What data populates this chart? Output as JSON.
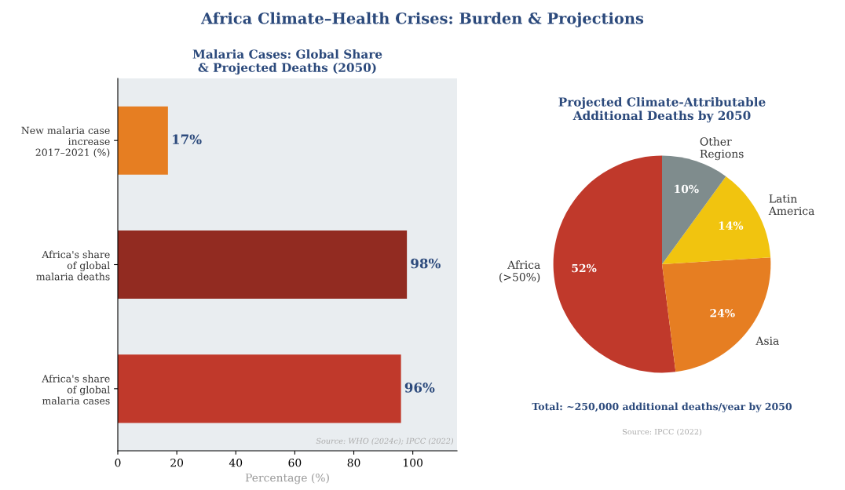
{
  "chart_data": [
    {
      "type": "bar",
      "orientation": "horizontal",
      "title": "Malaria Cases: Global Share\n& Projected Deaths (2050)",
      "xlabel": "Percentage (%)",
      "categories": [
        "New malaria case\nincrease\n2017–2021 (%)",
        "Africa's share\nof global\nmalaria deaths",
        "Africa's share\nof global\nmalaria cases"
      ],
      "values": [
        17,
        98,
        96
      ],
      "colors": [
        "#e67e22",
        "#922b21",
        "#c0392b"
      ],
      "value_labels": [
        "17%",
        "98%",
        "96%"
      ],
      "xlim": [
        0,
        115
      ],
      "xticks": [
        0,
        20,
        40,
        60,
        80,
        100
      ],
      "grid": false,
      "annotations": [
        "Africa Climate–Health Crises: Burden & Projections",
        "Source: WHO (2024c); IPCC (2022)"
      ]
    },
    {
      "type": "pie",
      "title": "Projected Climate-Attributable\nAdditional Deaths by 2050",
      "categories": [
        "Africa\n(>50%)",
        "Asia",
        "Latin\nAmerica",
        "Other\nRegions"
      ],
      "values": [
        52,
        24,
        14,
        10
      ],
      "colors": [
        "#c0392b",
        "#e67e22",
        "#f1c40f",
        "#7f8c8d"
      ],
      "value_labels": [
        "52%",
        "24%",
        "14%",
        "10%"
      ],
      "annotations": [
        "Total: ~250,000 additional deaths/year by 2050",
        "Source: IPCC (2022)"
      ]
    }
  ]
}
